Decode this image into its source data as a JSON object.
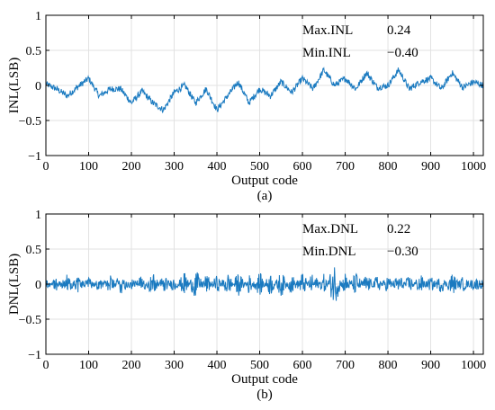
{
  "chart_data": [
    {
      "type": "line",
      "caption": "(a)",
      "xlabel": "Output code",
      "ylabel": "INL(LSB)",
      "xlim": [
        0,
        1023
      ],
      "ylim": [
        -1,
        1
      ],
      "xticks": [
        0,
        100,
        200,
        300,
        400,
        500,
        600,
        700,
        800,
        900,
        1000
      ],
      "yticks": [
        -1,
        -0.5,
        0,
        0.5,
        1
      ],
      "ytick_labels": [
        "−1",
        "−0.5",
        "0",
        "0.5",
        "1"
      ],
      "grid": true,
      "line_color": "#1a7ac0",
      "stats": [
        {
          "label": "Max.INL",
          "value": "0.24"
        },
        {
          "label": "Min.INL",
          "value": "−0.40"
        }
      ],
      "x": [
        0,
        25,
        50,
        75,
        100,
        125,
        150,
        175,
        200,
        225,
        250,
        275,
        300,
        325,
        350,
        375,
        400,
        425,
        450,
        475,
        500,
        525,
        550,
        575,
        600,
        625,
        650,
        675,
        700,
        725,
        750,
        775,
        800,
        825,
        850,
        875,
        900,
        925,
        950,
        975,
        1000,
        1023
      ],
      "values": [
        0.02,
        -0.05,
        -0.15,
        -0.02,
        0.1,
        -0.15,
        -0.05,
        -0.05,
        -0.25,
        -0.08,
        -0.25,
        -0.35,
        -0.1,
        0.0,
        -0.25,
        -0.05,
        -0.35,
        -0.15,
        0.05,
        -0.25,
        -0.05,
        -0.15,
        0.05,
        -0.1,
        0.1,
        -0.05,
        0.22,
        0.0,
        0.1,
        -0.05,
        0.18,
        -0.03,
        0.0,
        0.22,
        -0.05,
        0.05,
        0.1,
        -0.05,
        0.18,
        -0.03,
        0.05,
        0.0
      ]
    },
    {
      "type": "line",
      "caption": "(b)",
      "xlabel": "Output code",
      "ylabel": "DNL(LSB)",
      "xlim": [
        0,
        1023
      ],
      "ylim": [
        -1,
        1
      ],
      "xticks": [
        0,
        100,
        200,
        300,
        400,
        500,
        600,
        700,
        800,
        900,
        1000
      ],
      "yticks": [
        -1,
        -0.5,
        0,
        0.5,
        1
      ],
      "ytick_labels": [
        "−1",
        "−0.5",
        "0",
        "0.5",
        "1"
      ],
      "grid": true,
      "line_color": "#1a7ac0",
      "stats": [
        {
          "label": "Max.DNL",
          "value": "0.22"
        },
        {
          "label": "Min.DNL",
          "value": "−0.30"
        }
      ],
      "x": [
        0,
        25,
        50,
        75,
        100,
        125,
        150,
        175,
        200,
        225,
        250,
        275,
        300,
        325,
        350,
        375,
        400,
        425,
        450,
        475,
        500,
        525,
        550,
        575,
        600,
        625,
        650,
        675,
        700,
        725,
        750,
        775,
        800,
        825,
        850,
        875,
        900,
        925,
        950,
        975,
        1000,
        1023
      ],
      "values": [
        0.05,
        -0.08,
        0.12,
        -0.1,
        0.06,
        -0.07,
        0.1,
        -0.12,
        0.05,
        -0.1,
        0.14,
        -0.1,
        0.08,
        -0.15,
        0.2,
        -0.12,
        0.1,
        -0.15,
        0.15,
        -0.12,
        0.15,
        -0.15,
        0.16,
        -0.12,
        0.15,
        -0.15,
        0.12,
        -0.3,
        0.15,
        -0.15,
        0.12,
        -0.1,
        0.1,
        -0.12,
        0.1,
        -0.12,
        0.08,
        -0.1,
        0.14,
        -0.08,
        0.06,
        0.02
      ]
    }
  ]
}
